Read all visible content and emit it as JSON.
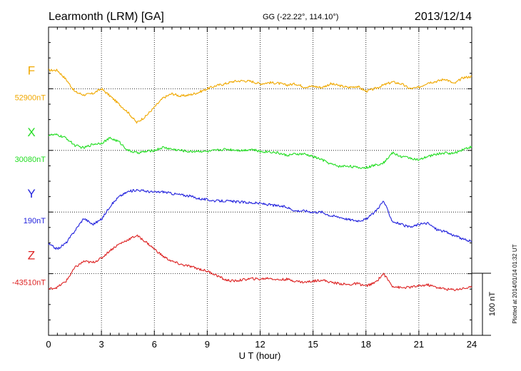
{
  "header": {
    "station": "Learmonth (LRM)  [GA]",
    "coords": "GG (-22.22°, 114.10°)",
    "date": "2013/12/14"
  },
  "footer_note": "Plotted at 2014/01/14 01:32 UT",
  "chart_data": {
    "type": "line",
    "xlabel": "U T (hour)",
    "xlim": [
      0,
      24
    ],
    "xticks": [
      "0",
      "3",
      "6",
      "9",
      "12",
      "15",
      "18",
      "21",
      "24"
    ],
    "y_unit_per_div": 100,
    "scale_bar_label": "100 nT",
    "series": [
      {
        "name": "F",
        "baseline_label": "52900nT",
        "color": "#f0a800",
        "baseline_row": 1,
        "x": [
          0,
          0.5,
          1,
          1.5,
          2,
          2.5,
          3,
          3.5,
          4,
          4.5,
          5,
          5.5,
          6,
          6.5,
          7,
          7.5,
          8,
          8.5,
          9,
          9.5,
          10,
          10.5,
          11,
          11.5,
          12,
          12.5,
          13,
          13.5,
          14,
          14.5,
          15,
          15.5,
          16,
          16.5,
          17,
          17.5,
          18,
          18.5,
          19,
          19.5,
          20,
          20.5,
          21,
          21.5,
          22,
          22.5,
          23,
          23.5,
          24
        ],
        "y": [
          30,
          30,
          15,
          -5,
          -10,
          -8,
          0,
          -12,
          -25,
          -38,
          -55,
          -45,
          -30,
          -15,
          -8,
          -12,
          -10,
          -6,
          0,
          5,
          8,
          12,
          13,
          12,
          8,
          10,
          9,
          6,
          8,
          3,
          4,
          2,
          8,
          5,
          2,
          4,
          -4,
          0,
          6,
          11,
          8,
          0,
          2,
          10,
          12,
          16,
          8,
          18,
          20
        ]
      },
      {
        "name": "X",
        "baseline_label": "30080nT",
        "color": "#22dd22",
        "baseline_row": 2,
        "x": [
          0,
          0.5,
          1,
          1.5,
          2,
          2.5,
          3,
          3.5,
          4,
          4.5,
          5,
          5.5,
          6,
          6.5,
          7,
          7.5,
          8,
          8.5,
          9,
          9.5,
          10,
          10.5,
          11,
          11.5,
          12,
          12.5,
          13,
          13.5,
          14,
          14.5,
          15,
          15.5,
          16,
          16.5,
          17,
          17.5,
          18,
          18.5,
          19,
          19.5,
          20,
          20.5,
          21,
          21.5,
          22,
          22.5,
          23,
          23.5,
          24
        ],
        "y": [
          25,
          25,
          20,
          8,
          4,
          10,
          12,
          20,
          14,
          0,
          -4,
          -2,
          0,
          5,
          2,
          0,
          -2,
          -1,
          -2,
          0,
          2,
          1,
          0,
          2,
          -2,
          -2,
          -4,
          -8,
          -6,
          -6,
          -10,
          -15,
          -22,
          -26,
          -25,
          -28,
          -28,
          -24,
          -20,
          -4,
          -10,
          -12,
          -16,
          -10,
          -6,
          -4,
          -5,
          2,
          6
        ]
      },
      {
        "name": "Y",
        "baseline_label": "190nT",
        "color": "#2222dd",
        "baseline_row": 3,
        "x": [
          0,
          0.5,
          1,
          1.5,
          2,
          2.5,
          3,
          3.5,
          4,
          4.5,
          5,
          5.5,
          6,
          6.5,
          7,
          7.5,
          8,
          8.5,
          9,
          9.5,
          10,
          10.5,
          11,
          11.5,
          12,
          12.5,
          13,
          13.5,
          14,
          14.5,
          15,
          15.5,
          16,
          16.5,
          17,
          17.5,
          18,
          18.5,
          19,
          19.5,
          20,
          20.5,
          21,
          21.5,
          22,
          22.5,
          23,
          23.5,
          24
        ],
        "y": [
          -52,
          -60,
          -50,
          -30,
          -10,
          -20,
          -12,
          10,
          25,
          33,
          36,
          34,
          32,
          33,
          30,
          28,
          26,
          22,
          20,
          18,
          18,
          17,
          16,
          15,
          14,
          12,
          10,
          8,
          2,
          2,
          0,
          0,
          -6,
          -8,
          -12,
          -14,
          -12,
          0,
          18,
          -15,
          -20,
          -25,
          -20,
          -18,
          -28,
          -32,
          -38,
          -44,
          -48
        ]
      },
      {
        "name": "Z",
        "baseline_label": "-43510nT",
        "color": "#dd2222",
        "baseline_row": 4,
        "x": [
          0,
          0.5,
          1,
          1.5,
          2,
          2.5,
          3,
          3.5,
          4,
          4.5,
          5,
          5.5,
          6,
          6.5,
          7,
          7.5,
          8,
          8.5,
          9,
          9.5,
          10,
          10.5,
          11,
          11.5,
          12,
          12.5,
          13,
          13.5,
          14,
          14.5,
          15,
          15.5,
          16,
          16.5,
          17,
          17.5,
          18,
          18.5,
          19,
          19.5,
          20,
          20.5,
          21,
          21.5,
          22,
          22.5,
          23,
          23.5,
          24
        ],
        "y": [
          -25,
          -22,
          -12,
          10,
          20,
          18,
          25,
          38,
          48,
          55,
          62,
          52,
          40,
          28,
          20,
          15,
          12,
          8,
          4,
          -2,
          -10,
          -12,
          -10,
          -8,
          -9,
          -7,
          -10,
          -9,
          -12,
          -14,
          -12,
          -10,
          -14,
          -16,
          -18,
          -16,
          -20,
          -15,
          0,
          -20,
          -23,
          -22,
          -20,
          -18,
          -22,
          -25,
          -26,
          -24,
          -22
        ]
      }
    ]
  }
}
